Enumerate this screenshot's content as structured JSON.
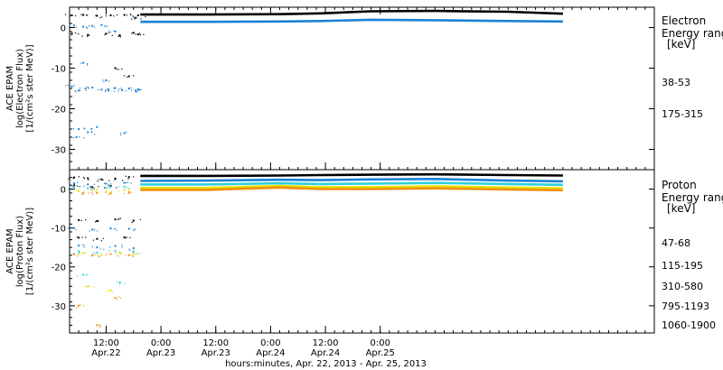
{
  "chart_data": [
    {
      "type": "scatter",
      "name": "electron",
      "ylabel_lines": [
        "ACE EPAM",
        "log(Electron Flux)",
        "[1/(cm²s ster MeV)]"
      ],
      "ylim": [
        -35,
        5
      ],
      "yticks": [
        0,
        -10,
        -20,
        -30
      ],
      "legend_lines": [
        "Electron",
        "Energy ranges",
        "[keV]"
      ],
      "series": [
        {
          "name": "38-53",
          "color": "#000000",
          "points": [
            [
              0.5,
              3
            ],
            [
              3,
              3.1
            ],
            [
              6,
              2.9
            ],
            [
              9,
              3.0
            ],
            [
              12,
              3.1
            ],
            [
              14.5,
              2.4
            ],
            [
              0.5,
              -1.5
            ],
            [
              4,
              -1.8
            ],
            [
              8,
              -1.5
            ],
            [
              11,
              -1.9
            ],
            [
              14,
              -1.3
            ],
            [
              15,
              -1.7
            ],
            [
              10,
              -10
            ],
            [
              13,
              -12
            ],
            [
              15,
              3
            ]
          ],
          "gap_end_h": 15.5,
          "base": [
            [
              15.5,
              3.2
            ],
            [
              30,
              3.2
            ],
            [
              46,
              3.3
            ],
            [
              55,
              3.5
            ],
            [
              66,
              4.0
            ],
            [
              80,
              4.1
            ],
            [
              96,
              3.9
            ],
            [
              108,
              3.4
            ]
          ]
        },
        {
          "name": "175-315",
          "color": "#1a82d8",
          "points": [
            [
              1,
              0.5
            ],
            [
              3,
              0.2
            ],
            [
              5,
              0.4
            ],
            [
              7,
              0.6
            ],
            [
              10,
              -1
            ],
            [
              0.5,
              -14.5
            ],
            [
              2,
              -15.5
            ],
            [
              3.5,
              -15
            ],
            [
              5,
              -14.8
            ],
            [
              7,
              -15.3
            ],
            [
              8.5,
              -15.5
            ],
            [
              10,
              -14.9
            ],
            [
              11.5,
              -15.4
            ],
            [
              13,
              -15
            ],
            [
              14.5,
              -15.6
            ],
            [
              15,
              -15.2
            ],
            [
              3,
              -8.7
            ],
            [
              8,
              -13
            ],
            [
              2,
              -25
            ],
            [
              4,
              -25.8
            ],
            [
              6,
              -24.5
            ],
            [
              12,
              -26
            ],
            [
              1.5,
              -27
            ]
          ],
          "base": [
            [
              15.5,
              1.4
            ],
            [
              30,
              1.4
            ],
            [
              46,
              1.5
            ],
            [
              55,
              1.6
            ],
            [
              66,
              1.9
            ],
            [
              80,
              1.8
            ],
            [
              96,
              1.6
            ],
            [
              108,
              1.5
            ]
          ]
        }
      ]
    },
    {
      "type": "scatter",
      "name": "proton",
      "ylabel_lines": [
        "ACE EPAM",
        "log(Proton Flux)",
        "[1/(cm²s ster MeV)]"
      ],
      "ylim": [
        -37,
        5
      ],
      "yticks": [
        0,
        -10,
        -20,
        -30
      ],
      "legend_lines": [
        "Proton",
        "Energy ranges",
        "[keV]"
      ],
      "series": [
        {
          "name": "47-68",
          "color": "#000000",
          "points": [
            [
              1,
              3
            ],
            [
              4,
              2.8
            ],
            [
              7,
              2.5
            ],
            [
              10,
              2.7
            ],
            [
              13,
              3.1
            ],
            [
              2,
              -8
            ],
            [
              6,
              -8.2
            ],
            [
              10,
              -7.8
            ],
            [
              14,
              -8.1
            ],
            [
              2,
              -12.5
            ],
            [
              6,
              -12.8
            ],
            [
              12,
              -12.4
            ],
            [
              1,
              1
            ],
            [
              5,
              0.5
            ],
            [
              9,
              0.8
            ]
          ],
          "base": [
            [
              15.5,
              3.4
            ],
            [
              30,
              3.4
            ],
            [
              46,
              3.5
            ],
            [
              55,
              3.6
            ],
            [
              66,
              3.7
            ],
            [
              80,
              3.8
            ],
            [
              96,
              3.6
            ],
            [
              108,
              3.5
            ]
          ]
        },
        {
          "name": "115-195",
          "color": "#1a82d8",
          "points": [
            [
              1,
              1.5
            ],
            [
              4,
              1.2
            ],
            [
              8,
              1.4
            ],
            [
              12,
              1.6
            ],
            [
              1,
              -10
            ],
            [
              5,
              -10.4
            ],
            [
              9,
              -10.1
            ],
            [
              13,
              -10.2
            ],
            [
              2,
              -14.5
            ],
            [
              6,
              -15
            ],
            [
              10,
              -14.6
            ],
            [
              14,
              -15.2
            ]
          ],
          "base": [
            [
              15.5,
              2.1
            ],
            [
              30,
              2.2
            ],
            [
              46,
              2.4
            ],
            [
              55,
              2.3
            ],
            [
              66,
              2.5
            ],
            [
              80,
              2.6
            ],
            [
              96,
              2.2
            ],
            [
              108,
              2.0
            ]
          ]
        },
        {
          "name": "310-580",
          "color": "#30d0d8",
          "points": [
            [
              1,
              0.5
            ],
            [
              4,
              0.2
            ],
            [
              8,
              0.3
            ],
            [
              12,
              0.6
            ],
            [
              2,
              -16
            ],
            [
              6,
              -16.3
            ],
            [
              10,
              -15.9
            ],
            [
              14,
              -16.1
            ],
            [
              3,
              -22
            ],
            [
              11,
              -24
            ]
          ],
          "base": [
            [
              15.5,
              1.2
            ],
            [
              30,
              1.2
            ],
            [
              46,
              1.5
            ],
            [
              55,
              1.3
            ],
            [
              66,
              1.4
            ],
            [
              80,
              1.6
            ],
            [
              96,
              1.3
            ],
            [
              108,
              1.1
            ]
          ]
        },
        {
          "name": "795-1193",
          "color": "#e8e000",
          "points": [
            [
              2,
              -0.5
            ],
            [
              5,
              -0.3
            ],
            [
              8,
              -0.6
            ],
            [
              12,
              -0.2
            ],
            [
              3,
              -16.5
            ],
            [
              7,
              -16.8
            ],
            [
              11,
              -16.4
            ],
            [
              14,
              -16.6
            ],
            [
              4,
              -25
            ],
            [
              9,
              -26
            ]
          ],
          "base": [
            [
              15.5,
              0.3
            ],
            [
              30,
              0.3
            ],
            [
              46,
              0.8
            ],
            [
              55,
              0.5
            ],
            [
              66,
              0.5
            ],
            [
              80,
              0.7
            ],
            [
              96,
              0.4
            ],
            [
              108,
              0.2
            ]
          ]
        },
        {
          "name": "1060-1900",
          "color": "#f09010",
          "points": [
            [
              3,
              -1
            ],
            [
              6,
              -0.9
            ],
            [
              9,
              -1.1
            ],
            [
              13,
              -0.8
            ],
            [
              1,
              -16.8
            ],
            [
              5,
              -17.1
            ],
            [
              9,
              -16.7
            ],
            [
              13,
              -17
            ],
            [
              2,
              -30
            ],
            [
              6,
              -35
            ],
            [
              10,
              -28
            ]
          ],
          "base": [
            [
              15.5,
              -0.2
            ],
            [
              30,
              -0.2
            ],
            [
              46,
              0.4
            ],
            [
              55,
              0.0
            ],
            [
              66,
              0.0
            ],
            [
              80,
              0.2
            ],
            [
              96,
              -0.1
            ],
            [
              108,
              -0.3
            ]
          ]
        }
      ]
    }
  ],
  "x_axis": {
    "start": "2013-04-22 04:00",
    "xlim_hours": [
      0,
      128
    ],
    "ticks": [
      {
        "h": 8,
        "time": "12:00",
        "date": "Apr.22"
      },
      {
        "h": 20,
        "time": "0:00",
        "date": "Apr.23"
      },
      {
        "h": 32,
        "time": "12:00",
        "date": "Apr.23"
      },
      {
        "h": 44,
        "time": "0:00",
        "date": "Apr.24"
      },
      {
        "h": 56,
        "time": "12:00",
        "date": "Apr.24"
      },
      {
        "h": 68,
        "time": "0:00",
        "date": "Apr.25"
      }
    ],
    "xlabel": "hours:minutes, Apr. 22, 2013 - Apr. 25, 2013"
  }
}
